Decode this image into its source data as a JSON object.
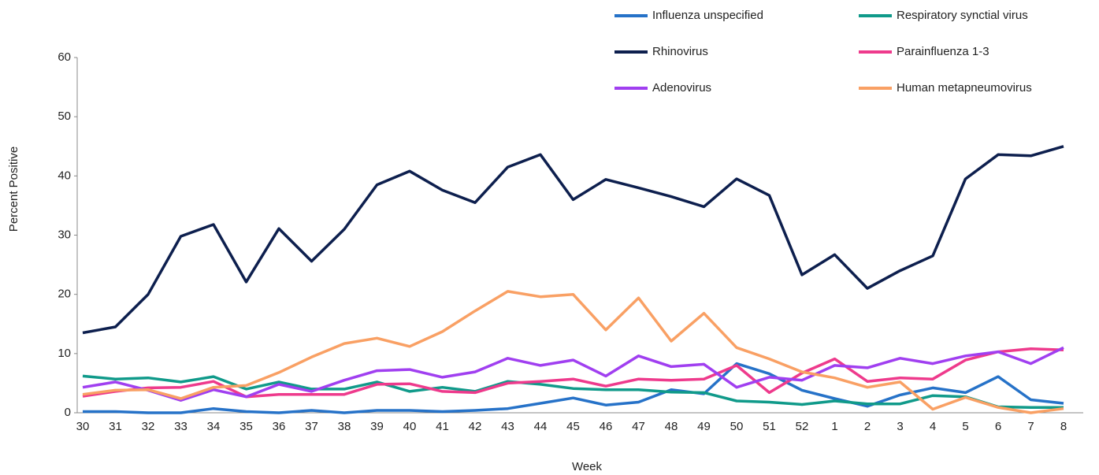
{
  "chart_data": {
    "type": "line",
    "x_label": "Week",
    "y_label": "Percent Positive",
    "categories": [
      "30",
      "31",
      "32",
      "33",
      "34",
      "35",
      "36",
      "37",
      "38",
      "39",
      "40",
      "41",
      "42",
      "43",
      "44",
      "45",
      "46",
      "47",
      "48",
      "49",
      "50",
      "51",
      "52",
      "1",
      "2",
      "3",
      "4",
      "5",
      "6",
      "7",
      "8"
    ],
    "ylim": [
      0,
      60
    ],
    "yticks": [
      0,
      10,
      20,
      30,
      40,
      50,
      60
    ],
    "grid": false,
    "series": [
      {
        "name": "Influenza unspecified",
        "color": "#2672c8",
        "values": [
          0.2,
          0.2,
          0,
          0,
          0.7,
          0.2,
          0,
          0.4,
          0,
          0.4,
          0.4,
          0.2,
          0.4,
          0.7,
          1.6,
          2.5,
          1.3,
          1.8,
          3.9,
          3.2,
          8.3,
          6.6,
          3.8,
          2.4,
          1.1,
          3,
          4.2,
          3.4,
          6.1,
          2.2,
          1.6
        ]
      },
      {
        "name": "Respiratory synctial virus",
        "color": "#109a8a",
        "values": [
          6.2,
          5.7,
          5.9,
          5.2,
          6.1,
          4,
          5.2,
          4,
          4,
          5.2,
          3.6,
          4.3,
          3.6,
          5.3,
          4.8,
          4.1,
          3.9,
          3.9,
          3.5,
          3.4,
          2,
          1.8,
          1.4,
          2,
          1.5,
          1.5,
          2.9,
          2.7,
          1,
          0.9,
          0.9
        ]
      },
      {
        "name": "Rhinovirus",
        "color": "#0d1f4e",
        "values": [
          13.5,
          14.5,
          20,
          29.8,
          31.8,
          22.1,
          31.1,
          25.6,
          31,
          38.5,
          40.8,
          37.6,
          35.5,
          41.5,
          43.6,
          36,
          39.4,
          38,
          36.5,
          34.8,
          39.5,
          36.7,
          23.3,
          26.7,
          21,
          24,
          26.5,
          39.5,
          43.6,
          43.4,
          45
        ]
      },
      {
        "name": "Parainfluenza 1-3",
        "color": "#ee3a8c",
        "values": [
          2.8,
          3.6,
          4.2,
          4.3,
          5.3,
          2.7,
          3.1,
          3.1,
          3.1,
          4.8,
          4.9,
          3.6,
          3.4,
          5,
          5.3,
          5.7,
          4.5,
          5.7,
          5.5,
          5.7,
          8,
          3.4,
          6.7,
          9.1,
          5.3,
          5.9,
          5.7,
          8.9,
          10.3,
          10.8,
          10.6
        ]
      },
      {
        "name": "Adenovirus",
        "color": "#a03ff0",
        "values": [
          4.3,
          5.2,
          3.8,
          2.1,
          3.9,
          2.7,
          4.8,
          3.6,
          5.5,
          7.1,
          7.3,
          6,
          6.9,
          9.2,
          8,
          8.9,
          6.2,
          9.6,
          7.8,
          8.2,
          4.3,
          6,
          5.5,
          8,
          7.6,
          9.2,
          8.3,
          9.6,
          10.3,
          8.3,
          11
        ]
      },
      {
        "name": "Human metapneumovirus",
        "color": "#f9a064",
        "values": [
          3.1,
          3.8,
          3.9,
          2.4,
          4.3,
          4.6,
          6.8,
          9.4,
          11.7,
          12.6,
          11.2,
          13.7,
          17.2,
          20.5,
          19.6,
          20,
          14,
          19.4,
          12.1,
          16.8,
          11,
          9.1,
          6.9,
          5.9,
          4.3,
          5.2,
          0.6,
          2.6,
          0.9,
          0,
          0.7
        ]
      }
    ]
  }
}
